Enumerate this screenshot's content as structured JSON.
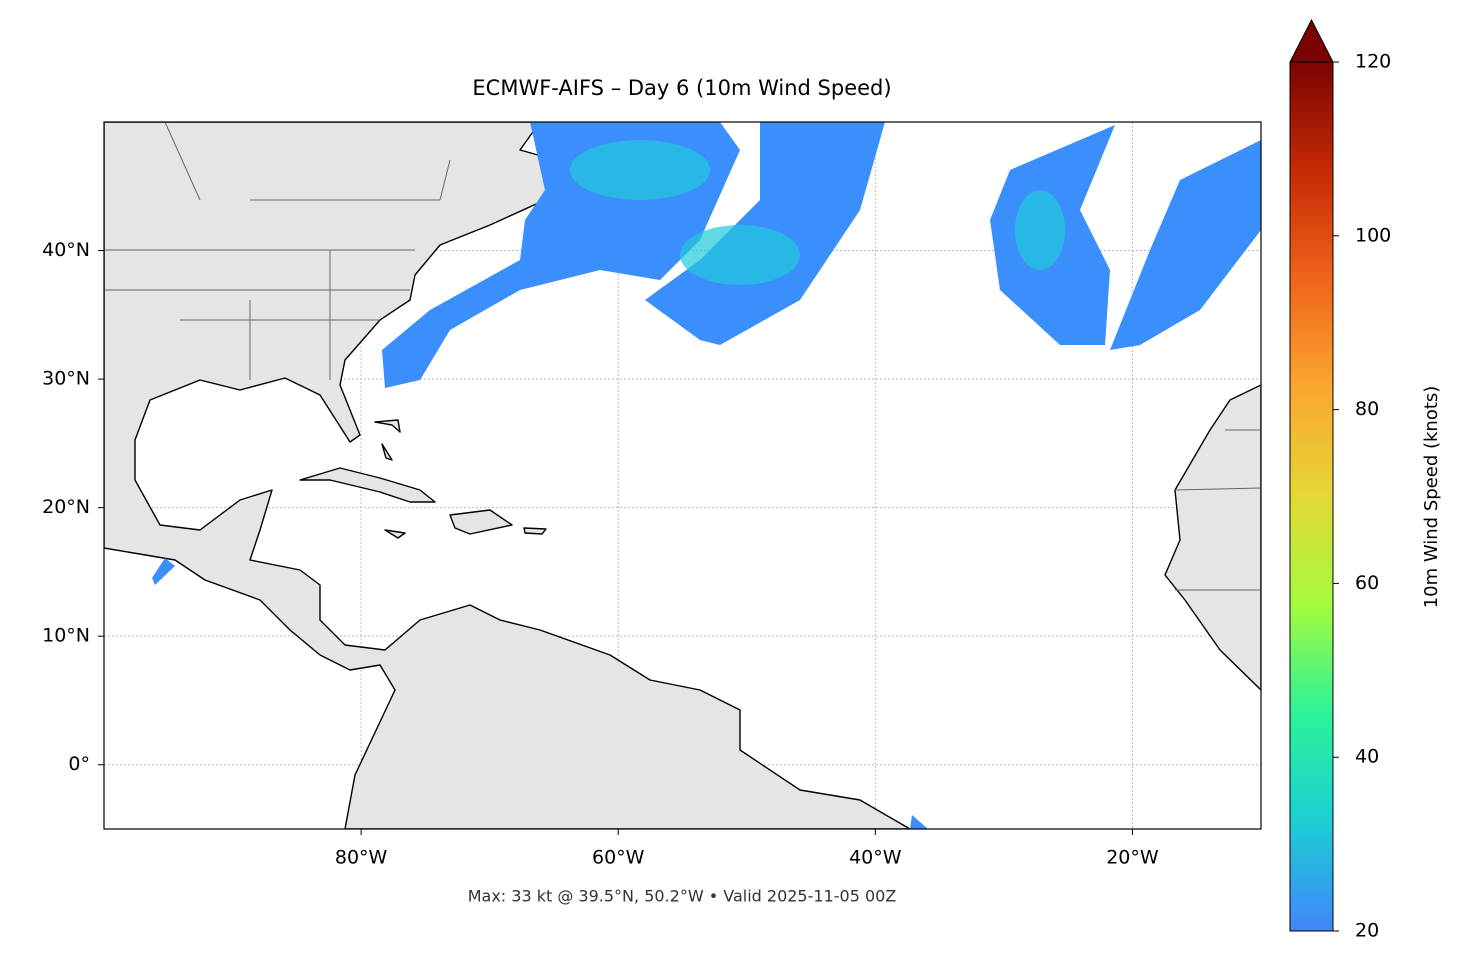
{
  "chart_data": {
    "type": "map",
    "title": "ECMWF-AIFS – Day 6 (10m Wind Speed)",
    "footer": "Max: 33 kt @ 39.5°N, 50.2°W • Valid 2025-11-05 00Z",
    "xlim": [
      -100,
      -10
    ],
    "ylim": [
      -5,
      50
    ],
    "xticks": [
      {
        "value": -80,
        "label": "80°W"
      },
      {
        "value": -60,
        "label": "60°W"
      },
      {
        "value": -40,
        "label": "40°W"
      },
      {
        "value": -20,
        "label": "20°W"
      }
    ],
    "yticks": [
      {
        "value": 40,
        "label": "40°N"
      },
      {
        "value": 30,
        "label": "30°N"
      },
      {
        "value": 20,
        "label": "20°N"
      },
      {
        "value": 10,
        "label": "10°N"
      },
      {
        "value": 0,
        "label": "0°"
      }
    ],
    "grid": true,
    "colorbar": {
      "label": "10m Wind Speed (knots)",
      "lim": [
        20,
        120
      ],
      "ticks": [
        20,
        40,
        60,
        80,
        100,
        120
      ],
      "colors": [
        "#4285fb",
        "#1bcfd4",
        "#2cf29a",
        "#a4fb3c",
        "#e3d835",
        "#fba730",
        "#f0641a",
        "#c52a04",
        "#7a0403"
      ]
    }
  }
}
